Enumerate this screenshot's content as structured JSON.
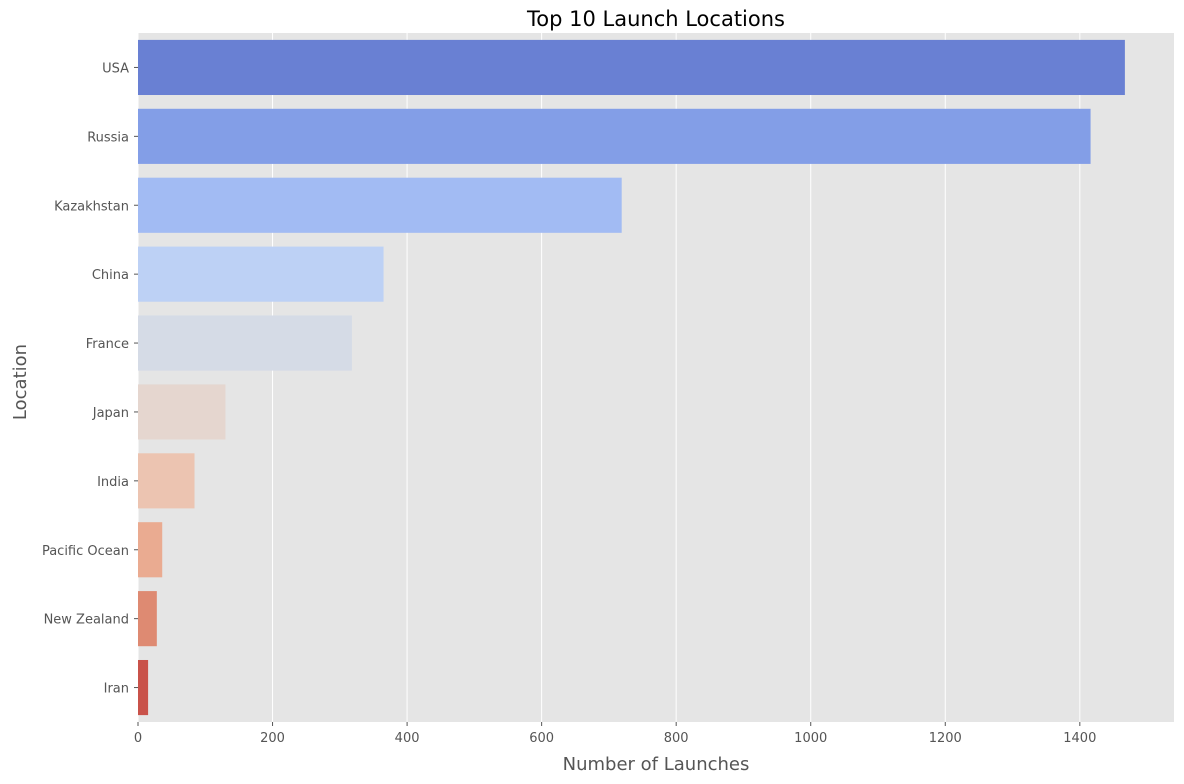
{
  "chart_data": {
    "type": "bar",
    "orientation": "horizontal",
    "title": "Top 10 Launch Locations",
    "xlabel": "Number of Launches",
    "ylabel": "Location",
    "categories": [
      "USA",
      "Russia",
      "Kazakhstan",
      "China",
      "France",
      "Japan",
      "India",
      "Pacific Ocean",
      "New Zealand",
      "Iran"
    ],
    "values": [
      1467,
      1416,
      719,
      365,
      318,
      130,
      84,
      36,
      28,
      15
    ],
    "colors": [
      "#6980d3",
      "#839ee7",
      "#a2bbf3",
      "#bdd1f5",
      "#d5dbe6",
      "#e5d6cf",
      "#ecc4b1",
      "#eaab91",
      "#de8a72",
      "#c9524a"
    ],
    "xlim": [
      0,
      1540
    ],
    "xticks": [
      0,
      200,
      400,
      600,
      800,
      1000,
      1200,
      1400
    ],
    "grid": true,
    "legend": "none",
    "plot_background": "#e5e5e5"
  }
}
